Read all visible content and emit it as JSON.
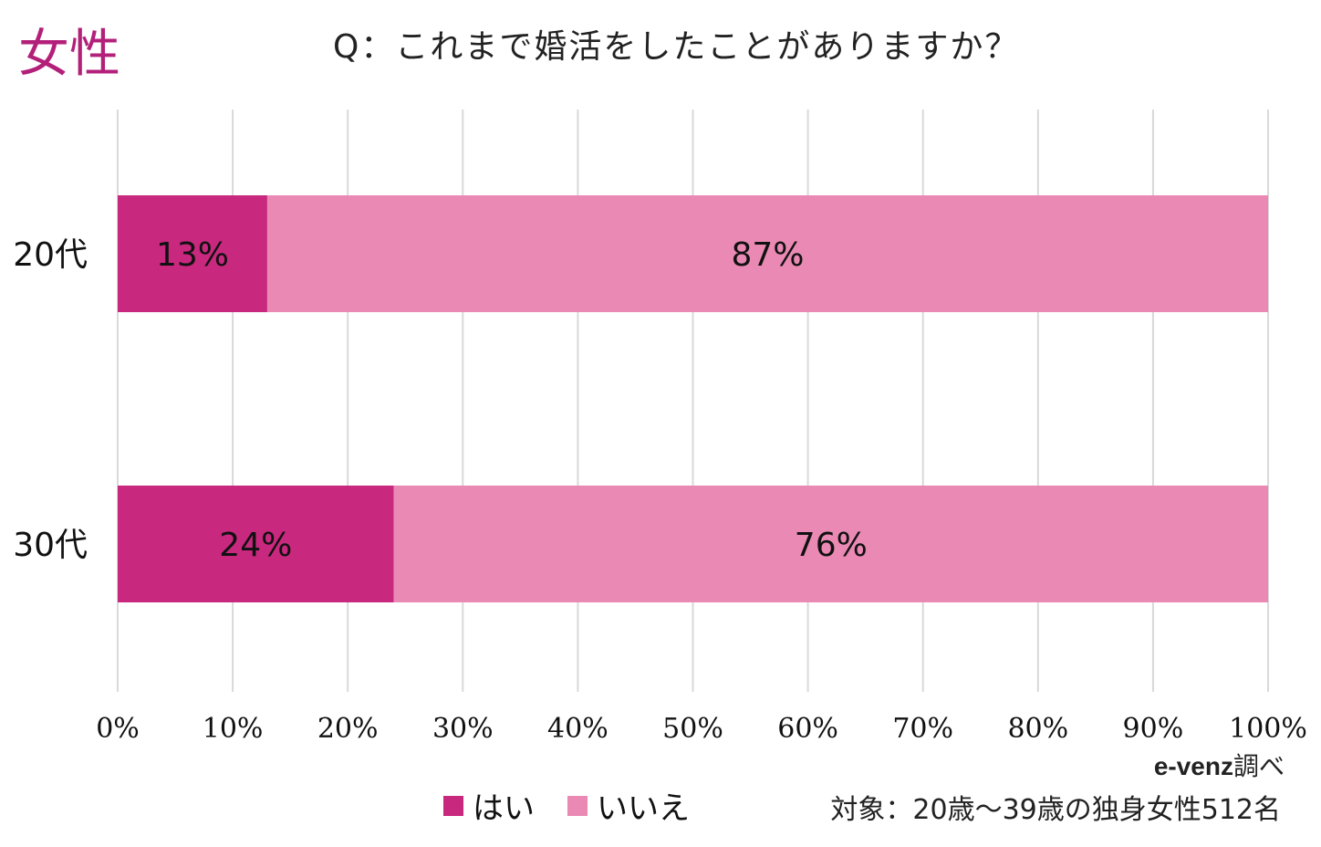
{
  "heading": "女性",
  "question": "Q：これまで婚活をしたことがありますか？",
  "source": {
    "brand": "e-venz",
    "suffix": "調べ"
  },
  "target_note": "対象：20歳〜39歳の独身女性512名",
  "colors": {
    "yes": "#c8287e",
    "no": "#ea8ab4",
    "grid": "#d9d9d9"
  },
  "chart_data": {
    "type": "bar",
    "orientation": "horizontal",
    "stacked": true,
    "percent": true,
    "categories": [
      "20代",
      "30代"
    ],
    "series": [
      {
        "name": "はい",
        "values": [
          13,
          24
        ],
        "labels": [
          "13%",
          "24%"
        ]
      },
      {
        "name": "いいえ",
        "values": [
          87,
          76
        ],
        "labels": [
          "87%",
          "76%"
        ]
      }
    ],
    "xlim": [
      0,
      100
    ],
    "xticks": [
      "0%",
      "10%",
      "20%",
      "30%",
      "40%",
      "50%",
      "60%",
      "70%",
      "80%",
      "90%",
      "100%"
    ],
    "grid": true,
    "legend": "bottom"
  }
}
